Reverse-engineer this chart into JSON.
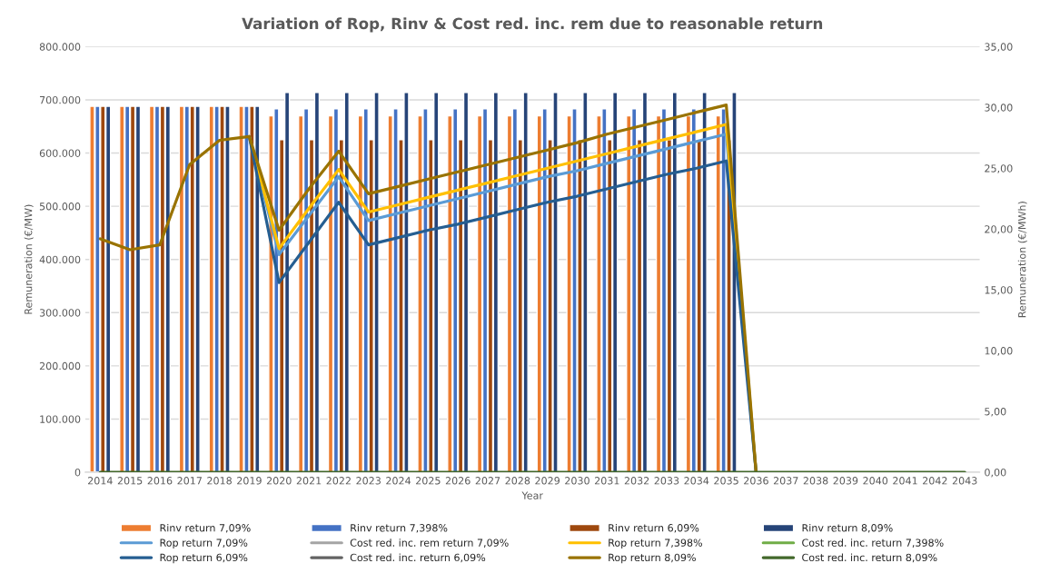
{
  "chart_data": {
    "type": "bar",
    "title": "Variation of Rop, Rinv & Cost red. inc. rem due to reasonable return",
    "xlabel": "Year",
    "ylabel": "Remuneration (€/MW)",
    "y2label": "Remuneration (€/MWh)",
    "categories": [
      "2014",
      "2015",
      "2016",
      "2017",
      "2018",
      "2019",
      "2020",
      "2021",
      "2022",
      "2023",
      "2024",
      "2025",
      "2026",
      "2027",
      "2028",
      "2029",
      "2030",
      "2031",
      "2032",
      "2033",
      "2034",
      "2035",
      "2036",
      "2037",
      "2038",
      "2039",
      "2040",
      "2041",
      "2042",
      "2043"
    ],
    "ylim": [
      0,
      800000
    ],
    "yticks": [
      {
        "value": 0,
        "label": "0"
      },
      {
        "value": 100000,
        "label": "100.000"
      },
      {
        "value": 200000,
        "label": "200.000"
      },
      {
        "value": 300000,
        "label": "300.000"
      },
      {
        "value": 400000,
        "label": "400.000"
      },
      {
        "value": 500000,
        "label": "500.000"
      },
      {
        "value": 600000,
        "label": "600.000"
      },
      {
        "value": 700000,
        "label": "700.000"
      },
      {
        "value": 800000,
        "label": "800.000"
      }
    ],
    "y2lim": [
      0,
      35
    ],
    "y2ticks": [
      {
        "value": 0,
        "label": "0,00"
      },
      {
        "value": 5,
        "label": "5,00"
      },
      {
        "value": 10,
        "label": "10,00"
      },
      {
        "value": 15,
        "label": "15,00"
      },
      {
        "value": 20,
        "label": "20,00"
      },
      {
        "value": 25,
        "label": "25,00"
      },
      {
        "value": 30,
        "label": "30,00"
      },
      {
        "value": 35,
        "label": "35,00"
      }
    ],
    "grid": "y",
    "legend": "bottom",
    "series": [
      {
        "name": "Rinv return 7,09%",
        "color": "#ed7d31",
        "values": [
          688000,
          688000,
          688000,
          688000,
          688000,
          688000,
          670000,
          670000,
          670000,
          670000,
          670000,
          670000,
          670000,
          670000,
          670000,
          670000,
          670000,
          670000,
          670000,
          670000,
          670000,
          670000,
          null,
          null,
          null,
          null,
          null,
          null,
          null,
          null
        ]
      },
      {
        "name": "Rinv return 7,398%",
        "color": "#4472c4",
        "values": [
          688000,
          688000,
          688000,
          688000,
          688000,
          688000,
          683000,
          683000,
          683000,
          683000,
          683000,
          683000,
          683000,
          683000,
          683000,
          683000,
          683000,
          683000,
          683000,
          683000,
          683000,
          683000,
          null,
          null,
          null,
          null,
          null,
          null,
          null,
          null
        ]
      },
      {
        "name": "Rinv return 6,09%",
        "color": "#9e480e",
        "values": [
          688000,
          688000,
          688000,
          688000,
          688000,
          688000,
          625000,
          625000,
          625000,
          625000,
          625000,
          625000,
          625000,
          625000,
          625000,
          625000,
          625000,
          625000,
          625000,
          625000,
          625000,
          625000,
          null,
          null,
          null,
          null,
          null,
          null,
          null,
          null
        ]
      },
      {
        "name": "Rinv return 8,09%",
        "color": "#264478",
        "values": [
          688000,
          688000,
          688000,
          688000,
          688000,
          688000,
          714000,
          714000,
          714000,
          714000,
          714000,
          714000,
          714000,
          714000,
          714000,
          714000,
          714000,
          714000,
          714000,
          714000,
          714000,
          714000,
          null,
          null,
          null,
          null,
          null,
          null,
          null,
          null
        ]
      },
      {
        "name": "Rop return 7,09%",
        "type": "line",
        "axis": "y2",
        "color": "#5b9bd5",
        "values": [
          null,
          null,
          null,
          null,
          null,
          27.6,
          17.9,
          21.1,
          24.3,
          20.7,
          21.3,
          21.9,
          22.5,
          23.1,
          23.7,
          24.3,
          24.8,
          25.4,
          26.0,
          26.6,
          27.2,
          27.8,
          0,
          null,
          null,
          null,
          null,
          null,
          null,
          null
        ]
      },
      {
        "name": "Cost red. inc. rem return 7,09%",
        "type": "line",
        "axis": "y2",
        "color": "#a5a5a5",
        "values": [
          null,
          null,
          null,
          null,
          null,
          null,
          null,
          null,
          null,
          null,
          null,
          null,
          null,
          null,
          null,
          null,
          null,
          null,
          null,
          null,
          null,
          null,
          null,
          null,
          null,
          null,
          null,
          null,
          null,
          null
        ]
      },
      {
        "name": "Rop return 7,398%",
        "type": "line",
        "axis": "y2",
        "color": "#ffc000",
        "values": [
          null,
          null,
          null,
          null,
          null,
          27.6,
          18.4,
          21.7,
          24.9,
          21.4,
          22.0,
          22.6,
          23.2,
          23.8,
          24.4,
          25.0,
          25.6,
          26.2,
          26.8,
          27.4,
          28.0,
          28.6,
          0,
          null,
          null,
          null,
          null,
          null,
          null,
          null
        ]
      },
      {
        "name": "Cost red. inc. return 7,398%",
        "type": "line",
        "axis": "y2",
        "color": "#70ad47",
        "values": [
          null,
          null,
          null,
          null,
          null,
          null,
          null,
          null,
          null,
          null,
          null,
          null,
          null,
          null,
          null,
          null,
          null,
          null,
          null,
          null,
          null,
          null,
          null,
          null,
          null,
          null,
          null,
          null,
          null,
          null
        ]
      },
      {
        "name": "Rop return 6,09%",
        "type": "line",
        "axis": "y2",
        "color": "#255e91",
        "values": [
          null,
          null,
          null,
          null,
          null,
          27.6,
          15.6,
          18.9,
          22.2,
          18.7,
          19.3,
          19.9,
          20.4,
          21.0,
          21.6,
          22.2,
          22.7,
          23.3,
          23.9,
          24.5,
          25.0,
          25.6,
          0,
          null,
          null,
          null,
          null,
          null,
          null,
          null
        ]
      },
      {
        "name": "Cost red. inc. return 6,09%",
        "type": "line",
        "axis": "y2",
        "color": "#636363",
        "values": [
          null,
          null,
          null,
          null,
          null,
          null,
          null,
          null,
          null,
          null,
          null,
          null,
          null,
          null,
          null,
          null,
          null,
          null,
          null,
          null,
          null,
          null,
          null,
          null,
          null,
          null,
          null,
          null,
          null,
          null
        ]
      },
      {
        "name": "Rop return 8,09%",
        "type": "line",
        "axis": "y2",
        "color": "#997300",
        "values": [
          19.2,
          18.3,
          18.7,
          25.3,
          27.3,
          27.6,
          19.9,
          23.3,
          26.4,
          22.9,
          23.5,
          24.1,
          24.7,
          25.3,
          25.9,
          26.5,
          27.1,
          27.8,
          28.4,
          29.0,
          29.6,
          30.2,
          0,
          null,
          null,
          null,
          null,
          null,
          null,
          null
        ]
      },
      {
        "name": "Cost red. inc. return 8,09%",
        "type": "line",
        "axis": "y2",
        "color": "#43682b",
        "values": [
          0,
          0,
          0,
          0,
          0,
          0,
          0,
          0,
          0,
          0,
          0,
          0,
          0,
          0,
          0,
          0,
          0,
          0,
          0,
          0,
          0,
          0,
          0,
          0,
          0,
          0,
          0,
          0,
          0,
          0
        ]
      }
    ]
  }
}
